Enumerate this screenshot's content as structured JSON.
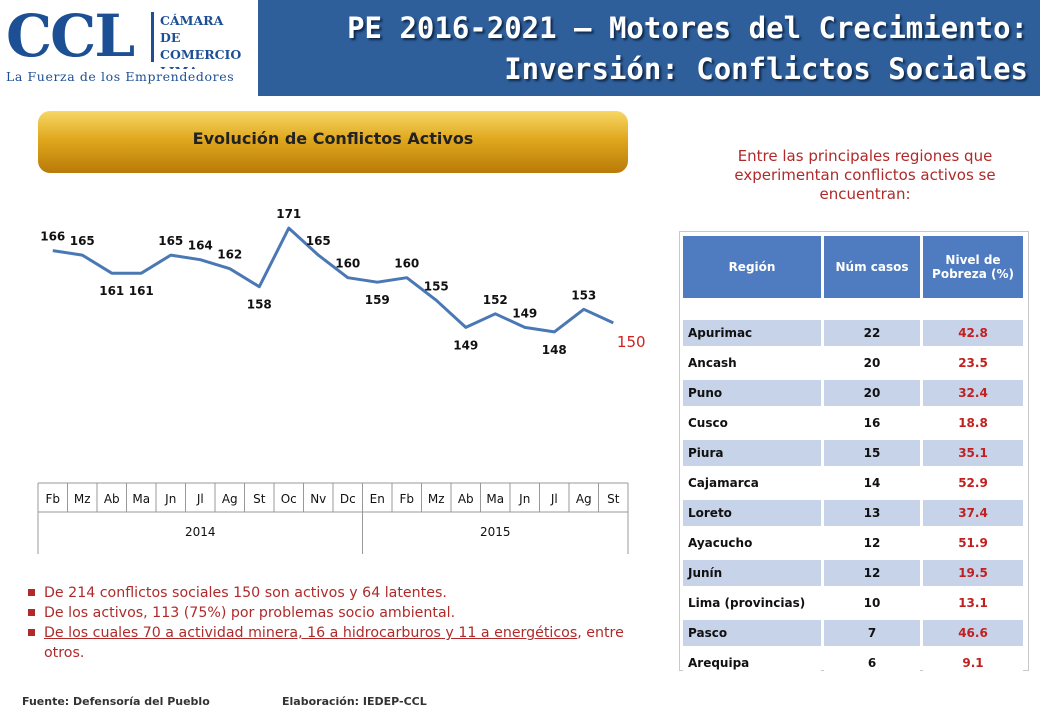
{
  "header": {
    "logo_text": "CCL",
    "logo_side_lines": [
      "CÁMARA",
      "DE COMERCIO",
      "LIMA"
    ],
    "logo_tagline": "La Fuerza de los Emprendedores",
    "title_line1": "PE 2016-2021 – Motores del Crecimiento:",
    "title_line2": "Inversión: Conflictos Sociales"
  },
  "chart_banner": "Evolución de Conflictos Activos",
  "chart_data": {
    "type": "line",
    "title": "Evolución de Conflictos Activos",
    "categories": [
      "Fb",
      "Mz",
      "Ab",
      "Ma",
      "Jn",
      "Jl",
      "Ag",
      "St",
      "Oc",
      "Nv",
      "Dc",
      "En",
      "Fb",
      "Mz",
      "Ab",
      "Ma",
      "Jn",
      "Jl",
      "Ag",
      "St"
    ],
    "years": [
      {
        "label": "2014",
        "count": 11
      },
      {
        "label": "2015",
        "count": 9
      }
    ],
    "series": [
      {
        "values": [
          166,
          165,
          161,
          161,
          165,
          164,
          162,
          158,
          171,
          165,
          160,
          159,
          160,
          155,
          149,
          152,
          149,
          148,
          153,
          150
        ]
      }
    ],
    "line_color": "#4a78b5",
    "last_label_color": "#d02020",
    "ylim": [
      140,
      175
    ],
    "grid": false
  },
  "bullets": [
    "De 214 conflictos sociales 150 son activos y 64 latentes.",
    "De los activos, 113 (75%) por problemas socio ambiental."
  ],
  "bullet3": {
    "underlined": "De los cuales 70 a actividad minera, 16 a hidrocarburos y 11 a energéticos",
    "rest": ", entre otros."
  },
  "footer": {
    "source": "Fuente: Defensoría del Pueblo",
    "author": "Elaboración: IEDEP-CCL"
  },
  "intro_text": "Entre las principales regiones que experimentan conflictos activos se encuentran:",
  "table": {
    "headers": [
      "Región",
      "Núm casos",
      "Nivel de Pobreza (%)"
    ],
    "rows": [
      {
        "region": "Apurimac",
        "cases": "22",
        "poverty": "42.8"
      },
      {
        "region": "Ancash",
        "cases": "20",
        "poverty": "23.5"
      },
      {
        "region": "Puno",
        "cases": "20",
        "poverty": "32.4"
      },
      {
        "region": "Cusco",
        "cases": "16",
        "poverty": "18.8"
      },
      {
        "region": "Piura",
        "cases": "15",
        "poverty": "35.1"
      },
      {
        "region": "Cajamarca",
        "cases": "14",
        "poverty": "52.9"
      },
      {
        "region": "Loreto",
        "cases": "13",
        "poverty": "37.4"
      },
      {
        "region": "Ayacucho",
        "cases": "12",
        "poverty": "51.9"
      },
      {
        "region": "Junín",
        "cases": "12",
        "poverty": "19.5"
      },
      {
        "region": "Lima (provincias)",
        "cases": "10",
        "poverty": "13.1"
      },
      {
        "region": "Pasco",
        "cases": "7",
        "poverty": "46.6"
      },
      {
        "region": "Arequipa",
        "cases": "6",
        "poverty": "9.1"
      }
    ]
  },
  "colors": {
    "header_bg": "#2f5f9a",
    "banner_gold": "#e0a81e",
    "accent_red": "#b02a2a",
    "table_header": "#4f7cc0",
    "table_stripe": "#c6d3e8"
  }
}
